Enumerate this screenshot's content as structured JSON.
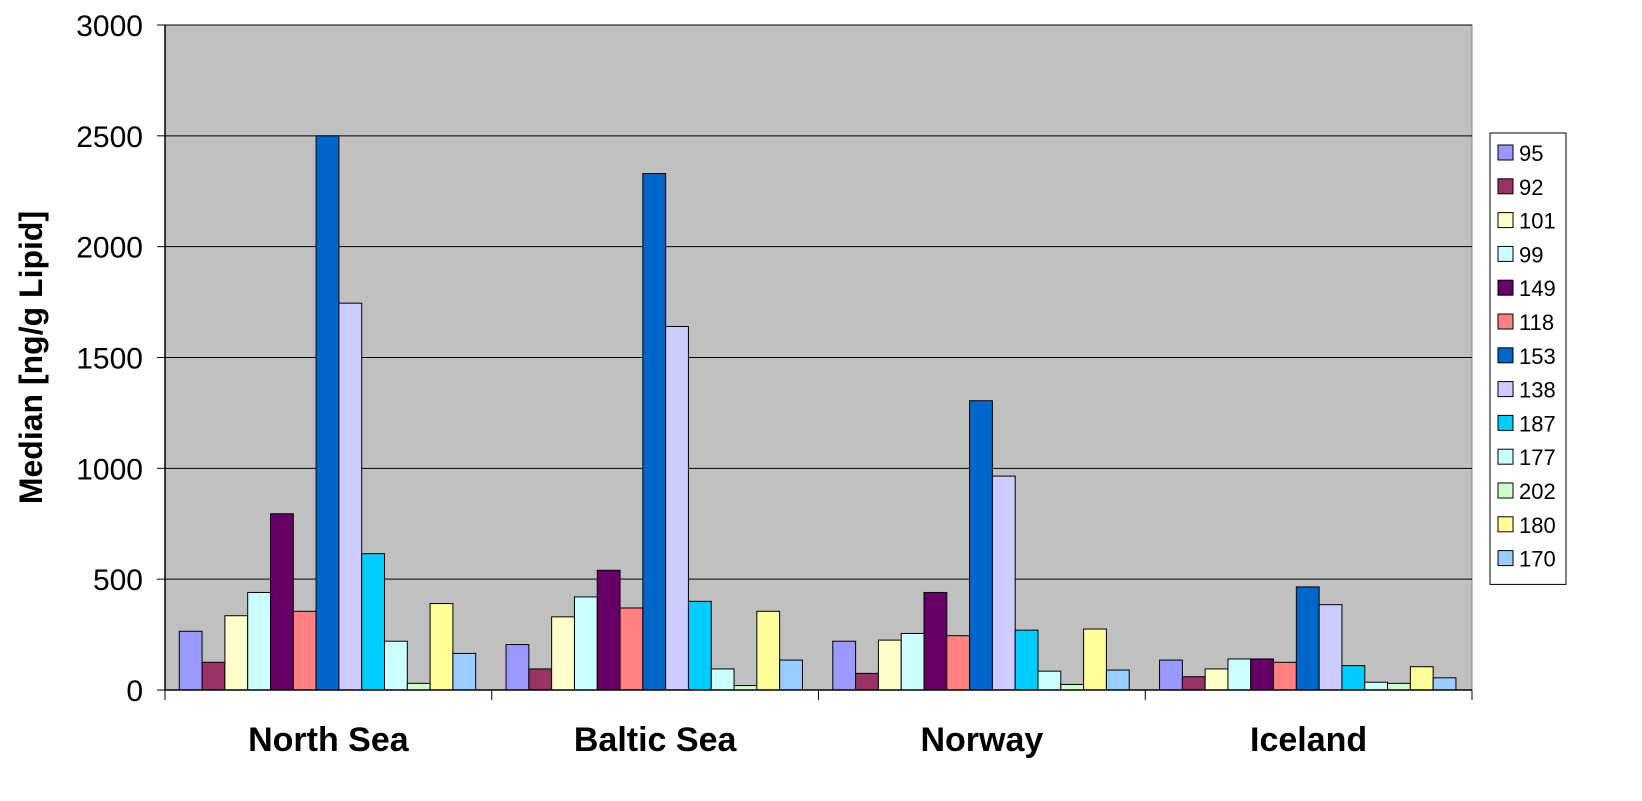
{
  "chart_data": {
    "type": "bar",
    "title": "",
    "xlabel": "",
    "ylabel": "Median [ng/g Lipid]",
    "ylim": [
      0,
      3000
    ],
    "yticks": [
      0,
      500,
      1000,
      1500,
      2000,
      2500,
      3000
    ],
    "grid": true,
    "legend_position": "right",
    "plot_background": "#C0C0C0",
    "categories": [
      "North Sea",
      "Baltic Sea",
      "Norway",
      "Iceland"
    ],
    "series": [
      {
        "name": "95",
        "color": "#9999FF",
        "values": [
          265,
          205,
          220,
          135
        ]
      },
      {
        "name": "92",
        "color": "#993366",
        "values": [
          125,
          95,
          75,
          60
        ]
      },
      {
        "name": "101",
        "color": "#FFFFCC",
        "values": [
          335,
          330,
          225,
          95
        ]
      },
      {
        "name": "99",
        "color": "#CCFFFF",
        "values": [
          440,
          420,
          255,
          140
        ]
      },
      {
        "name": "149",
        "color": "#660066",
        "values": [
          795,
          540,
          440,
          140
        ]
      },
      {
        "name": "118",
        "color": "#FF8080",
        "values": [
          355,
          370,
          245,
          125
        ]
      },
      {
        "name": "153",
        "color": "#0066CC",
        "values": [
          2500,
          2330,
          1305,
          465
        ]
      },
      {
        "name": "138",
        "color": "#CCCCFF",
        "values": [
          1745,
          1640,
          965,
          385
        ]
      },
      {
        "name": "187",
        "color": "#00CCFF",
        "values": [
          615,
          400,
          270,
          110
        ]
      },
      {
        "name": "177",
        "color": "#CCFFFF",
        "values": [
          220,
          95,
          85,
          35
        ]
      },
      {
        "name": "202",
        "color": "#CCFFCC",
        "values": [
          30,
          20,
          25,
          30
        ]
      },
      {
        "name": "180",
        "color": "#FFFF99",
        "values": [
          390,
          355,
          275,
          105
        ]
      },
      {
        "name": "170",
        "color": "#99CCFF",
        "values": [
          165,
          135,
          90,
          55
        ]
      }
    ]
  }
}
